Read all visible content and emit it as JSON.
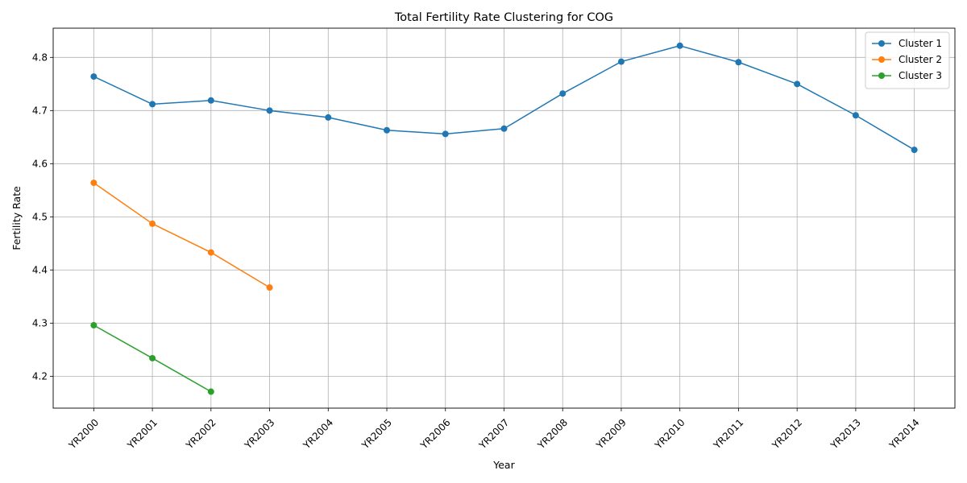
{
  "chart_data": {
    "type": "line",
    "title": "Total Fertility Rate Clustering for COG",
    "xlabel": "Year",
    "ylabel": "Fertility Rate",
    "categories": [
      "YR2000",
      "YR2001",
      "YR2002",
      "YR2003",
      "YR2004",
      "YR2005",
      "YR2006",
      "YR2007",
      "YR2008",
      "YR2009",
      "YR2010",
      "YR2011",
      "YR2012",
      "YR2013",
      "YR2014"
    ],
    "ylim": [
      4.14,
      4.855
    ],
    "yticks": [
      4.2,
      4.3,
      4.4,
      4.5,
      4.6,
      4.7,
      4.8
    ],
    "ytick_labels": [
      "4.2",
      "4.3",
      "4.4",
      "4.5",
      "4.6",
      "4.7",
      "4.8"
    ],
    "grid": true,
    "legend_position": "top-right",
    "series": [
      {
        "name": "Cluster 1",
        "color": "#1f77b4",
        "values": [
          4.764,
          4.712,
          4.719,
          4.7,
          4.687,
          4.663,
          4.656,
          4.666,
          4.732,
          4.792,
          4.822,
          4.791,
          4.75,
          4.691,
          4.626
        ]
      },
      {
        "name": "Cluster 2",
        "color": "#ff7f0e",
        "values": [
          4.564,
          4.487,
          4.433,
          4.367,
          null,
          null,
          null,
          null,
          null,
          null,
          null,
          null,
          null,
          null,
          null
        ]
      },
      {
        "name": "Cluster 3",
        "color": "#2ca02c",
        "values": [
          4.296,
          4.234,
          4.171,
          null,
          null,
          null,
          null,
          null,
          null,
          null,
          null,
          null,
          null,
          null,
          null
        ]
      }
    ]
  }
}
